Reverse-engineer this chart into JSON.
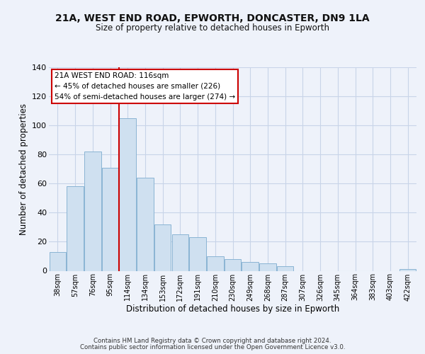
{
  "title": "21A, WEST END ROAD, EPWORTH, DONCASTER, DN9 1LA",
  "subtitle": "Size of property relative to detached houses in Epworth",
  "xlabel": "Distribution of detached houses by size in Epworth",
  "ylabel": "Number of detached properties",
  "bar_labels": [
    "38sqm",
    "57sqm",
    "76sqm",
    "95sqm",
    "114sqm",
    "134sqm",
    "153sqm",
    "172sqm",
    "191sqm",
    "210sqm",
    "230sqm",
    "249sqm",
    "268sqm",
    "287sqm",
    "307sqm",
    "326sqm",
    "345sqm",
    "364sqm",
    "383sqm",
    "403sqm",
    "422sqm"
  ],
  "bar_values": [
    13,
    58,
    82,
    71,
    105,
    64,
    32,
    25,
    23,
    10,
    8,
    6,
    5,
    3,
    0,
    0,
    0,
    0,
    0,
    0,
    1
  ],
  "bar_color": "#cfe0f0",
  "bar_edge_color": "#8ab4d4",
  "vline_x_idx": 4,
  "vline_color": "#cc0000",
  "annotation_title": "21A WEST END ROAD: 116sqm",
  "annotation_line1": "← 45% of detached houses are smaller (226)",
  "annotation_line2": "54% of semi-detached houses are larger (274) →",
  "ylim": [
    0,
    140
  ],
  "yticks": [
    0,
    20,
    40,
    60,
    80,
    100,
    120,
    140
  ],
  "footer1": "Contains HM Land Registry data © Crown copyright and database right 2024.",
  "footer2": "Contains public sector information licensed under the Open Government Licence v3.0.",
  "bg_color": "#eef2fa",
  "plot_bg_color": "#eef2fa",
  "grid_color": "#c8d4e8"
}
